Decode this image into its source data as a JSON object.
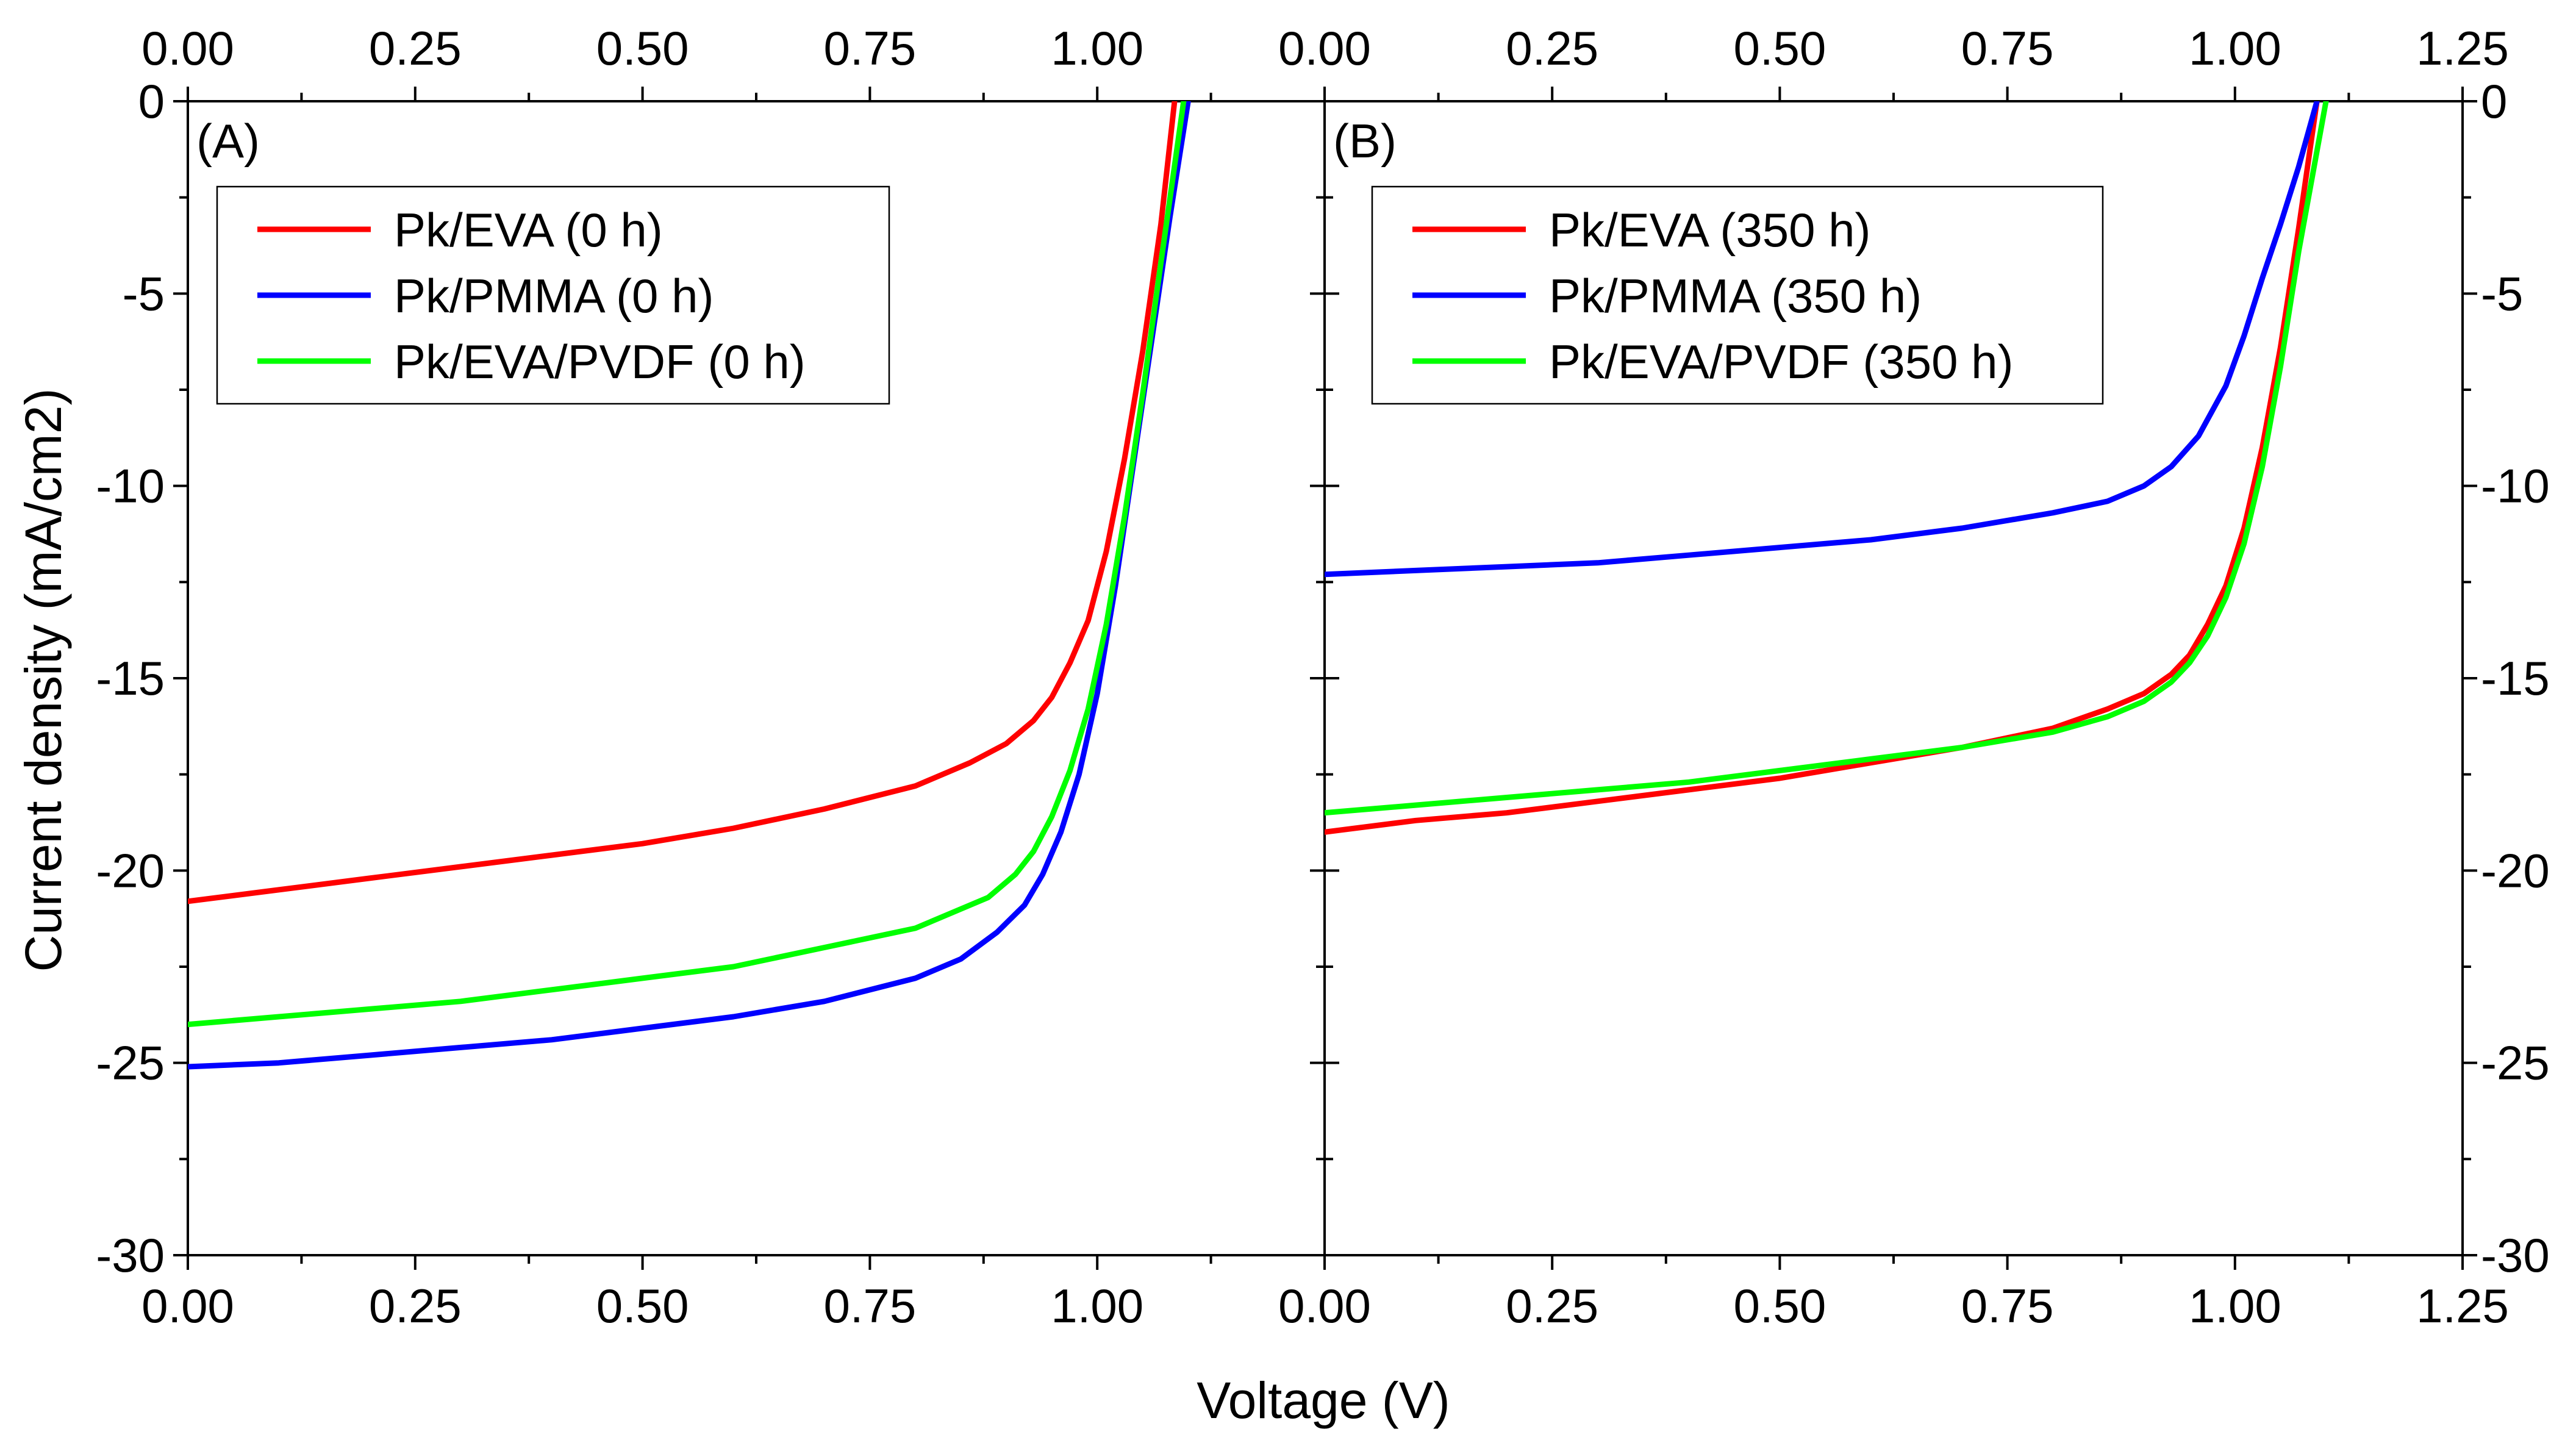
{
  "figure": {
    "xlabel": "Voltage (V)",
    "ylabel": "Current density (mA/cm2)"
  },
  "chart_data": [
    {
      "type": "line",
      "panel_label": "(A)",
      "xlim": [
        0,
        1.25
      ],
      "ylim": [
        -30,
        0
      ],
      "x_tick_labels": [
        "0.00",
        "0.25",
        "0.50",
        "0.75",
        "1.00"
      ],
      "y_tick_labels": [
        "0",
        "-5",
        "-10",
        "-15",
        "-20",
        "-25",
        "-30"
      ],
      "legend_position": "top-left",
      "series": [
        {
          "name": "Pk/EVA (0 h)",
          "color": "#ff0000",
          "x": [
            0,
            0.1,
            0.2,
            0.3,
            0.4,
            0.5,
            0.6,
            0.7,
            0.8,
            0.86,
            0.9,
            0.93,
            0.95,
            0.97,
            0.99,
            1.01,
            1.03,
            1.05,
            1.07,
            1.085
          ],
          "y": [
            -20.8,
            -20.5,
            -20.2,
            -19.9,
            -19.6,
            -19.3,
            -18.9,
            -18.4,
            -17.8,
            -17.2,
            -16.7,
            -16.1,
            -15.5,
            -14.6,
            -13.5,
            -11.7,
            -9.3,
            -6.5,
            -3.2,
            0
          ]
        },
        {
          "name": "Pk/PMMA (0 h)",
          "color": "#0000ff",
          "x": [
            0,
            0.1,
            0.2,
            0.3,
            0.4,
            0.5,
            0.6,
            0.7,
            0.8,
            0.85,
            0.89,
            0.92,
            0.94,
            0.96,
            0.98,
            1.0,
            1.02,
            1.04,
            1.06,
            1.08,
            1.1
          ],
          "y": [
            -25.1,
            -25.0,
            -24.8,
            -24.6,
            -24.4,
            -24.1,
            -23.8,
            -23.4,
            -22.8,
            -22.3,
            -21.6,
            -20.9,
            -20.1,
            -19.0,
            -17.5,
            -15.4,
            -12.6,
            -9.4,
            -6.2,
            -3.0,
            0
          ]
        },
        {
          "name": "Pk/EVA/PVDF (0 h)",
          "color": "#00ff00",
          "x": [
            0,
            0.1,
            0.2,
            0.3,
            0.4,
            0.5,
            0.6,
            0.7,
            0.8,
            0.85,
            0.88,
            0.91,
            0.93,
            0.95,
            0.97,
            0.99,
            1.01,
            1.03,
            1.05,
            1.07,
            1.095
          ],
          "y": [
            -24.0,
            -23.8,
            -23.6,
            -23.4,
            -23.1,
            -22.8,
            -22.5,
            -22.0,
            -21.5,
            -21.0,
            -20.7,
            -20.1,
            -19.5,
            -18.6,
            -17.4,
            -15.8,
            -13.6,
            -10.8,
            -7.6,
            -4.2,
            0
          ]
        }
      ]
    },
    {
      "type": "line",
      "panel_label": "(B)",
      "xlim": [
        0,
        1.25
      ],
      "ylim": [
        -30,
        0
      ],
      "x_tick_labels": [
        "0.00",
        "0.25",
        "0.50",
        "0.75",
        "1.00",
        "1.25"
      ],
      "y_tick_labels": [
        "0",
        "-5",
        "-10",
        "-15",
        "-20",
        "-25",
        "-30"
      ],
      "legend_position": "top-left",
      "series": [
        {
          "name": "Pk/EVA (350 h)",
          "color": "#ff0000",
          "x": [
            0,
            0.1,
            0.2,
            0.3,
            0.4,
            0.5,
            0.6,
            0.7,
            0.8,
            0.86,
            0.9,
            0.93,
            0.95,
            0.97,
            0.99,
            1.01,
            1.03,
            1.05,
            1.07,
            1.09
          ],
          "y": [
            -19.0,
            -18.7,
            -18.5,
            -18.2,
            -17.9,
            -17.6,
            -17.2,
            -16.8,
            -16.3,
            -15.8,
            -15.4,
            -14.9,
            -14.4,
            -13.6,
            -12.6,
            -11.1,
            -9.0,
            -6.4,
            -3.3,
            0
          ]
        },
        {
          "name": "Pk/PMMA (350 h)",
          "color": "#0000ff",
          "x": [
            0,
            0.1,
            0.2,
            0.3,
            0.4,
            0.5,
            0.6,
            0.7,
            0.8,
            0.86,
            0.9,
            0.93,
            0.96,
            0.99,
            1.01,
            1.03,
            1.05,
            1.07,
            1.09
          ],
          "y": [
            -12.3,
            -12.2,
            -12.1,
            -12.0,
            -11.8,
            -11.6,
            -11.4,
            -11.1,
            -10.7,
            -10.4,
            -10.0,
            -9.5,
            -8.7,
            -7.4,
            -6.1,
            -4.6,
            -3.2,
            -1.7,
            0
          ]
        },
        {
          "name": "Pk/EVA/PVDF (350 h)",
          "color": "#00ff00",
          "x": [
            0,
            0.1,
            0.2,
            0.3,
            0.4,
            0.5,
            0.6,
            0.7,
            0.8,
            0.86,
            0.9,
            0.93,
            0.95,
            0.97,
            0.99,
            1.01,
            1.03,
            1.05,
            1.07,
            1.1
          ],
          "y": [
            -18.5,
            -18.3,
            -18.1,
            -17.9,
            -17.7,
            -17.4,
            -17.1,
            -16.8,
            -16.4,
            -16.0,
            -15.6,
            -15.1,
            -14.6,
            -13.9,
            -12.9,
            -11.5,
            -9.5,
            -6.9,
            -3.9,
            0
          ]
        }
      ]
    }
  ]
}
